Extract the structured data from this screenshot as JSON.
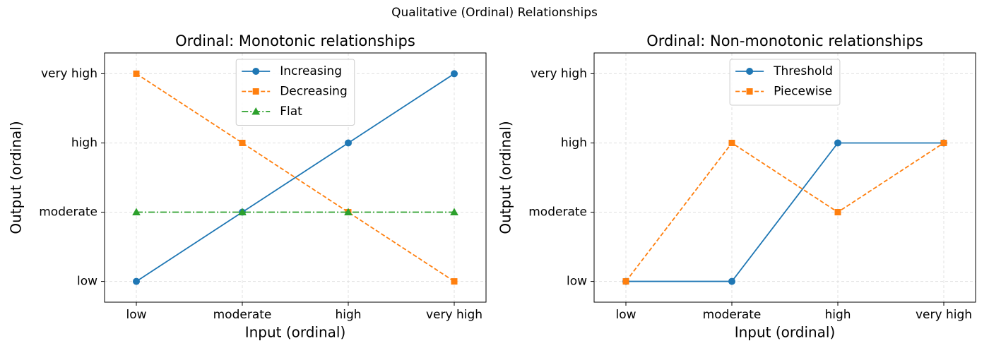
{
  "title": "Qualitative (Ordinal) Relationships",
  "chart_data": [
    {
      "type": "line",
      "title": "Ordinal: Monotonic relationships",
      "xlabel": "Input (ordinal)",
      "ylabel": "Output (ordinal)",
      "x": [
        0,
        1,
        2,
        3
      ],
      "series": [
        {
          "name": "Increasing",
          "color": "#1f77b4",
          "marker": "circle",
          "linestyle": "solid",
          "values": [
            0,
            1,
            2,
            3
          ]
        },
        {
          "name": "Decreasing",
          "color": "#ff7f0e",
          "marker": "square",
          "linestyle": "dashed",
          "values": [
            3,
            2,
            1,
            0
          ]
        },
        {
          "name": "Flat",
          "color": "#2ca02c",
          "marker": "triangle",
          "linestyle": "dashdot",
          "values": [
            1,
            1,
            1,
            1
          ]
        }
      ],
      "xlim": [
        -0.3,
        3.3
      ],
      "ylim": [
        -0.3,
        3.3
      ],
      "xticks": [
        {
          "value": 0,
          "label": "low"
        },
        {
          "value": 1,
          "label": "moderate"
        },
        {
          "value": 2,
          "label": "high"
        },
        {
          "value": 3,
          "label": "very high"
        }
      ],
      "yticks": [
        {
          "value": 0,
          "label": "low"
        },
        {
          "value": 1,
          "label": "moderate"
        },
        {
          "value": 2,
          "label": "high"
        },
        {
          "value": 3,
          "label": "very high"
        }
      ],
      "grid": true,
      "legend": "upper center"
    },
    {
      "type": "line",
      "title": "Ordinal: Non-monotonic relationships",
      "xlabel": "Input (ordinal)",
      "ylabel": "Output (ordinal)",
      "x": [
        0,
        1,
        2,
        3
      ],
      "series": [
        {
          "name": "Threshold",
          "color": "#1f77b4",
          "marker": "circle",
          "linestyle": "solid",
          "values": [
            0,
            0,
            2,
            2
          ]
        },
        {
          "name": "Piecewise",
          "color": "#ff7f0e",
          "marker": "square",
          "linestyle": "dashed",
          "values": [
            0,
            2,
            1,
            2
          ]
        }
      ],
      "xlim": [
        -0.3,
        3.3
      ],
      "ylim": [
        -0.3,
        3.3
      ],
      "xticks": [
        {
          "value": 0,
          "label": "low"
        },
        {
          "value": 1,
          "label": "moderate"
        },
        {
          "value": 2,
          "label": "high"
        },
        {
          "value": 3,
          "label": "very high"
        }
      ],
      "yticks": [
        {
          "value": 0,
          "label": "low"
        },
        {
          "value": 1,
          "label": "moderate"
        },
        {
          "value": 2,
          "label": "high"
        },
        {
          "value": 3,
          "label": "very high"
        }
      ],
      "grid": true,
      "legend": "upper center"
    }
  ]
}
